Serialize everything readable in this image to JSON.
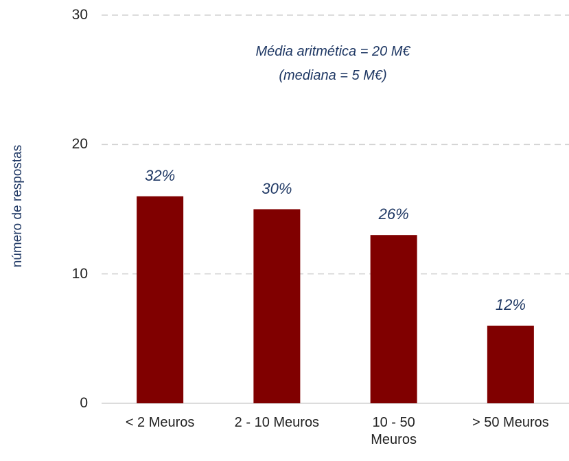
{
  "chart_data": {
    "type": "bar",
    "y_axis_label": "número de respostas",
    "annotations": [
      "Média aritmética = 20 M€",
      "(mediana =  5 M€)"
    ],
    "categories": [
      "< 2 Meuros",
      "2 - 10 Meuros",
      "10 - 50\nMeuros",
      "> 50 Meuros"
    ],
    "values": [
      16,
      15,
      13,
      6
    ],
    "data_labels": [
      "32%",
      "30%",
      "26%",
      "12%"
    ],
    "color": "#800000",
    "ylim": [
      0,
      30
    ],
    "yticks": [
      0,
      10,
      20,
      30
    ],
    "grid": true
  }
}
